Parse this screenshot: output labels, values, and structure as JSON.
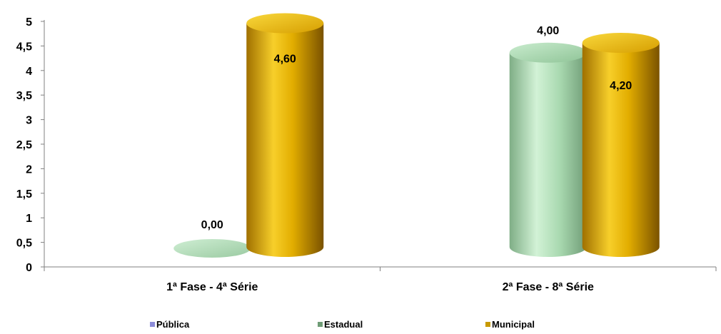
{
  "chart_data": {
    "type": "bar",
    "style": "3d-cylinder",
    "categories": [
      "1ª Fase - 4ª Série",
      "2ª Fase - 8ª Série"
    ],
    "series": [
      {
        "name": "Pública",
        "values": [
          null,
          null
        ],
        "labels": [
          "",
          ""
        ],
        "color": "#8c8cd9"
      },
      {
        "name": "Estadual",
        "values": [
          0,
          4.0
        ],
        "labels": [
          "0,00",
          "4,00"
        ],
        "color": "#a8dcb0"
      },
      {
        "name": "Municipal",
        "values": [
          4.6,
          4.2
        ],
        "labels": [
          "4,60",
          "4,20"
        ],
        "color": "#e0b000"
      }
    ],
    "ylim": [
      0,
      5
    ],
    "yticks": [
      0,
      0.5,
      1,
      1.5,
      2,
      2.5,
      3,
      3.5,
      4,
      4.5,
      5
    ],
    "ytick_labels": [
      "0",
      "0,5",
      "1",
      "1,5",
      "2",
      "2,5",
      "3",
      "3,5",
      "4",
      "4,5",
      "5"
    ],
    "grid": false,
    "legend": "bottom",
    "title": "",
    "xlabel": "",
    "ylabel": ""
  }
}
